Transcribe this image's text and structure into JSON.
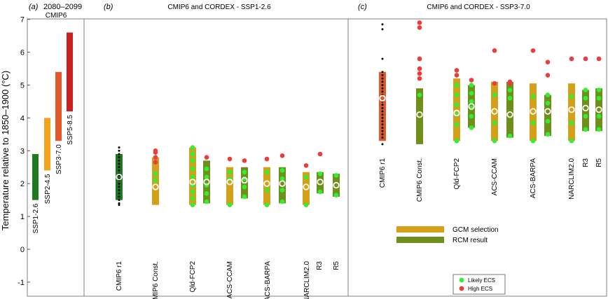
{
  "figure": {
    "ylabel": "Temperature relative to 1850–1900 (°C)",
    "ylim": [
      -1.5,
      7.0
    ],
    "yticks": [
      "-1",
      "0",
      "1",
      "2",
      "3",
      "4",
      "5",
      "6",
      "7"
    ]
  },
  "colors": {
    "ssp126": "#1e7a1e",
    "ssp245": "#f2a31b",
    "ssp370": "#e0572a",
    "ssp585": "#cc1f1f",
    "gcm": "#d4a017",
    "rcm": "#6e8f1a",
    "likely": "#33ee33",
    "high": "#ee3b3b",
    "member": "#000000"
  },
  "chart_data": [
    {
      "panel": "a",
      "type": "bar",
      "panel_label": "(a)",
      "title": "2080–2099",
      "subtitle": "CMIP6",
      "categories": [
        "SSP1-2.6",
        "SSP2-4.5",
        "SSP3-7.0",
        "SSP5-8.5"
      ],
      "ranges": [
        [
          1.5,
          2.9
        ],
        [
          2.4,
          4.0
        ],
        [
          3.3,
          5.4
        ],
        [
          4.2,
          6.6
        ]
      ]
    },
    {
      "panel": "b",
      "type": "bar",
      "panel_label": "(b)",
      "title": "CMIP6 and CORDEX - SSP1-2.6",
      "categories": [
        "CMIP6 r1",
        "CMIP6 Const.",
        "Qld-FCP2",
        "ACS-CCAM",
        "ACS-BARPA",
        "NARCLIM2.0",
        "R3",
        "R5"
      ],
      "series": [
        {
          "name": "CMIP6 r1",
          "kind": "ssp",
          "range": [
            1.5,
            2.9
          ],
          "median": 2.2,
          "members": [
            1.35,
            1.4,
            1.5,
            1.6,
            1.7,
            1.8,
            1.9,
            2.0,
            2.1,
            2.15,
            2.25,
            2.3,
            2.4,
            2.5,
            2.6,
            2.7,
            2.8,
            2.9,
            3.0,
            3.1
          ]
        },
        {
          "name": "CMIP6 Const.",
          "kind": "gcm",
          "range": [
            1.35,
            2.8
          ],
          "median": 1.9,
          "likely": [
            2.1,
            2.3
          ],
          "high": [
            2.65,
            2.8,
            2.95,
            3.0
          ]
        },
        {
          "name": "Qld-FCP2 GCM",
          "kind": "gcm",
          "range": [
            1.35,
            3.1
          ],
          "median": 2.05,
          "likely": [
            1.35,
            1.55,
            1.75,
            1.95,
            2.2,
            2.45,
            2.7,
            2.9,
            3.1
          ],
          "high": []
        },
        {
          "name": "Qld-FCP2 RCM",
          "kind": "rcm",
          "range": [
            1.4,
            2.7
          ],
          "median": 2.05,
          "likely": [
            1.45,
            1.7,
            1.95,
            2.2,
            2.45
          ],
          "high": [
            2.8
          ]
        },
        {
          "name": "ACS-CCAM GCM",
          "kind": "gcm",
          "range": [
            1.35,
            2.5
          ],
          "median": 2.05,
          "likely": [
            1.35,
            2.15,
            2.35
          ],
          "high": [
            2.75
          ]
        },
        {
          "name": "ACS-CCAM RCM",
          "kind": "rcm",
          "range": [
            1.55,
            2.5
          ],
          "median": 2.1,
          "likely": [
            1.6,
            1.9,
            2.15,
            2.35
          ],
          "high": [
            2.7
          ]
        },
        {
          "name": "ACS-BARPA GCM",
          "kind": "gcm",
          "range": [
            1.35,
            2.5
          ],
          "median": 2.0,
          "likely": [
            1.35,
            1.8,
            2.35
          ],
          "high": [
            2.75
          ]
        },
        {
          "name": "ACS-BARPA RCM",
          "kind": "rcm",
          "range": [
            1.4,
            2.5
          ],
          "median": 2.0,
          "likely": [
            1.45,
            1.8,
            2.15,
            2.4
          ],
          "high": [
            2.85
          ]
        },
        {
          "name": "NARCLIM2.0 GCM",
          "kind": "gcm",
          "range": [
            1.35,
            2.35
          ],
          "median": 1.9,
          "likely": [
            1.35,
            2.2
          ],
          "high": [
            2.55
          ]
        },
        {
          "name": "NARCLIM2.0 RCM",
          "kind": "rcm",
          "range": [
            1.7,
            2.35
          ],
          "median": 2.05,
          "likely": [
            1.75,
            2.3
          ],
          "high": [
            2.9
          ]
        },
        {
          "name": "R5",
          "kind": "rcm",
          "range": [
            1.6,
            2.3
          ],
          "median": 1.95,
          "likely": [
            1.65,
            2.25
          ],
          "high": []
        }
      ]
    },
    {
      "panel": "c",
      "type": "bar",
      "panel_label": "(c)",
      "title": "CMIP6 and CORDEX - SSP3-7.0",
      "categories": [
        "CMIP6 r1",
        "CMIP6 Const.",
        "Qld-FCP2",
        "ACS-CCAM",
        "ACS-BARPA",
        "NARCLIM2.0",
        "R3",
        "R5"
      ],
      "series": [
        {
          "name": "CMIP6 r1",
          "kind": "ssp",
          "range": [
            3.3,
            5.4
          ],
          "median": 4.6,
          "members": [
            3.2,
            3.4,
            3.5,
            3.6,
            3.7,
            3.8,
            3.9,
            4.0,
            4.1,
            4.2,
            4.3,
            4.4,
            4.5,
            4.7,
            4.8,
            4.9,
            5.0,
            5.1,
            5.2,
            5.3,
            5.4,
            5.8,
            6.7,
            6.85
          ]
        },
        {
          "name": "CMIP6 Const.",
          "kind": "rcm",
          "range": [
            3.2,
            4.9
          ],
          "median": 4.1,
          "likely": [
            4.7
          ],
          "high": [
            5.2,
            5.35,
            5.5,
            5.8,
            6.75,
            6.9
          ]
        },
        {
          "name": "Qld-FCP2 GCM",
          "kind": "gcm",
          "range": [
            3.3,
            5.2
          ],
          "median": 4.15,
          "likely": [
            3.3,
            3.8,
            4.1,
            4.4,
            4.7,
            5.0
          ],
          "high": [
            5.3,
            5.45
          ]
        },
        {
          "name": "Qld-FCP2 RCM",
          "kind": "rcm",
          "range": [
            3.7,
            5.0
          ],
          "median": 4.35,
          "likely": [
            3.7,
            4.05,
            4.3,
            4.5,
            4.75,
            5.0
          ],
          "high": [
            5.15
          ]
        },
        {
          "name": "ACS-CCAM GCM",
          "kind": "gcm",
          "range": [
            3.3,
            5.1
          ],
          "median": 4.2,
          "likely": [
            3.3,
            3.85,
            4.7
          ],
          "high": [
            5.05,
            6.05
          ]
        },
        {
          "name": "ACS-CCAM RCM",
          "kind": "rcm",
          "range": [
            3.4,
            5.1
          ],
          "median": 4.1,
          "likely": [
            3.45,
            4.6,
            4.85
          ],
          "high": [
            5.05,
            5.1
          ]
        },
        {
          "name": "ACS-BARPA GCM",
          "kind": "gcm",
          "range": [
            3.3,
            5.05
          ],
          "median": 4.2,
          "likely": [
            3.3,
            3.85,
            4.65
          ],
          "high": [
            6.05
          ]
        },
        {
          "name": "ACS-BARPA RCM",
          "kind": "rcm",
          "range": [
            3.45,
            4.7
          ],
          "median": 4.2,
          "likely": [
            3.5,
            3.9,
            4.45,
            4.7
          ],
          "high": [
            5.3,
            5.7
          ]
        },
        {
          "name": "NARCLIM2.0 GCM",
          "kind": "gcm",
          "range": [
            3.3,
            5.05
          ],
          "median": 4.25,
          "likely": [
            3.3,
            3.85,
            4.65
          ],
          "high": [
            5.8
          ]
        },
        {
          "name": "R3",
          "kind": "rcm",
          "range": [
            3.6,
            4.85
          ],
          "median": 4.3,
          "likely": [
            3.65,
            4.05,
            4.6,
            4.85
          ],
          "high": [
            5.8
          ]
        },
        {
          "name": "R5",
          "kind": "rcm",
          "range": [
            3.6,
            4.9
          ],
          "median": 4.25,
          "likely": [
            3.65,
            4.05,
            4.6,
            4.85
          ],
          "high": [
            5.8
          ]
        }
      ]
    }
  ],
  "legend_bars": {
    "gcm": "GCM selection",
    "rcm": "RCM result"
  },
  "legend_dots": {
    "likely": "Likely ECS",
    "high": "High ECS"
  }
}
